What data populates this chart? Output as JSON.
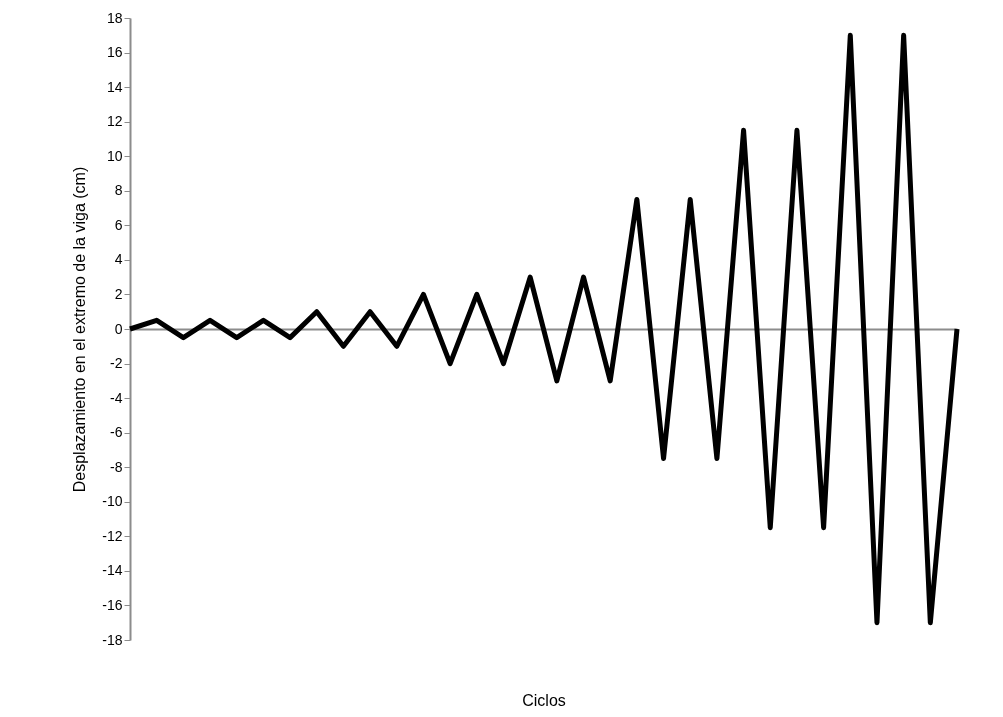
{
  "chart_data": {
    "type": "line",
    "xlabel": "Ciclos",
    "ylabel": "Desplazamiento en el extremo de la viga  (cm)",
    "categories": [
      null,
      null,
      null,
      null,
      null,
      null,
      null,
      null,
      null,
      null,
      null,
      null,
      null,
      null,
      null,
      null,
      null,
      null,
      null,
      null,
      null,
      null,
      null,
      null,
      null,
      null,
      null,
      null,
      null,
      null,
      null,
      null
    ],
    "series": [
      {
        "color": "#000000",
        "values": [
          0,
          0.5,
          -0.5,
          0.5,
          -0.5,
          0.5,
          -0.5,
          1,
          -1,
          1,
          -1,
          2,
          -2,
          2,
          -2,
          3,
          -3,
          3,
          -3,
          7.5,
          -7.5,
          7.5,
          -7.5,
          11.5,
          -11.5,
          11.5,
          -11.5,
          17,
          -17,
          17,
          -17,
          0
        ]
      }
    ],
    "ylim": [
      -18,
      18
    ],
    "yticks": [
      -18,
      -16,
      -14,
      -12,
      -10,
      -8,
      -6,
      -4,
      -2,
      0,
      2,
      4,
      6,
      8,
      10,
      12,
      14,
      16,
      18
    ],
    "tick_labels": "y",
    "legend": false,
    "marker": "none",
    "line_style": "solid"
  }
}
